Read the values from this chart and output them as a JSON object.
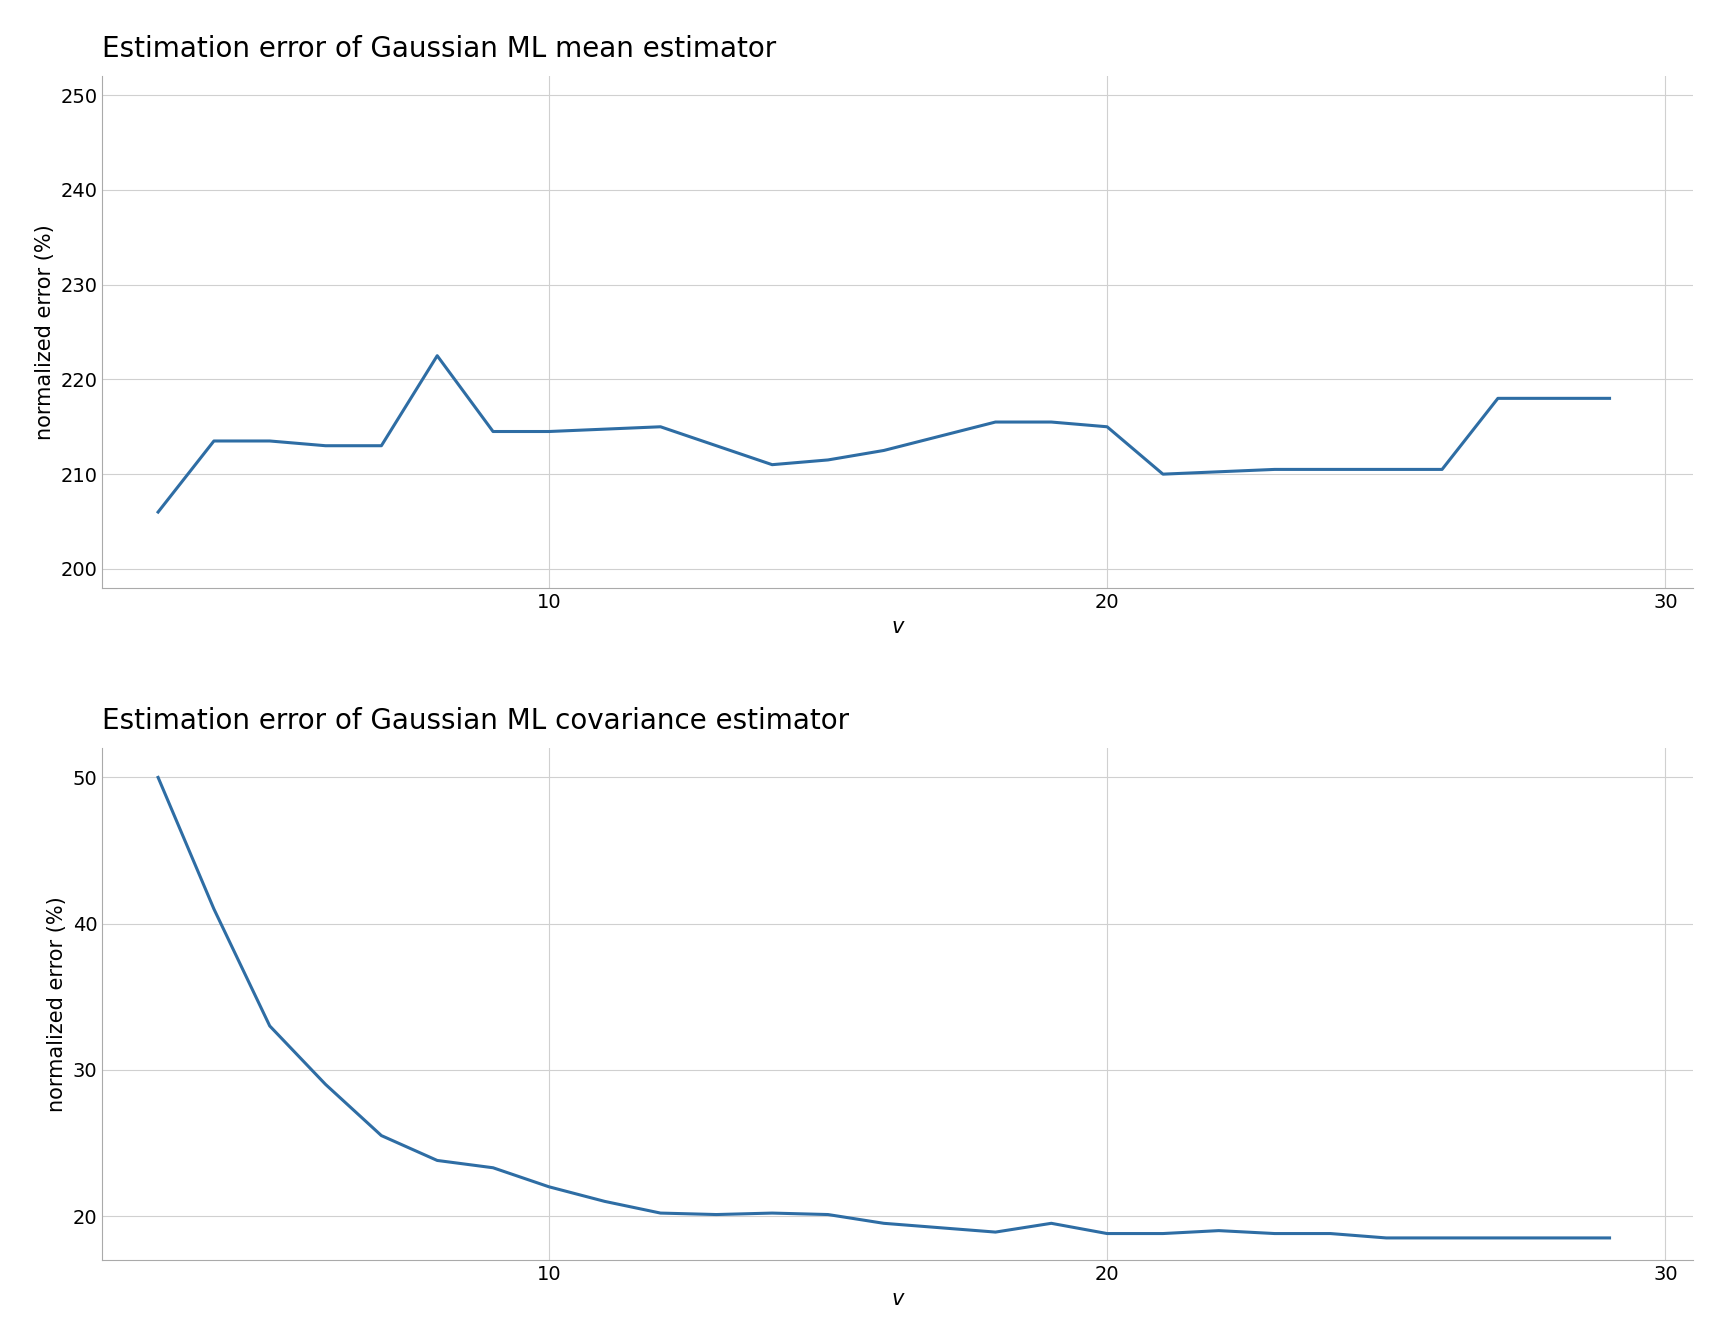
{
  "mean_x": [
    3,
    4,
    5,
    6,
    7,
    8,
    9,
    10,
    12,
    14,
    15,
    16,
    18,
    19,
    20,
    21,
    23,
    25,
    26,
    27,
    29
  ],
  "mean_y": [
    206.0,
    213.5,
    213.5,
    213.0,
    213.0,
    222.5,
    214.5,
    214.5,
    215.0,
    211.0,
    211.5,
    212.5,
    215.5,
    215.5,
    215.0,
    210.0,
    210.5,
    210.5,
    210.5,
    218.0,
    218.0
  ],
  "cov_x": [
    3,
    4,
    5,
    6,
    7,
    8,
    9,
    10,
    11,
    12,
    13,
    14,
    15,
    16,
    17,
    18,
    19,
    20,
    21,
    22,
    23,
    24,
    25,
    26,
    27,
    28,
    29
  ],
  "cov_y": [
    50.0,
    41.0,
    33.0,
    29.0,
    25.5,
    23.8,
    23.3,
    22.0,
    21.0,
    20.2,
    20.1,
    20.2,
    20.1,
    19.5,
    19.2,
    18.9,
    19.5,
    18.8,
    18.8,
    19.0,
    18.8,
    18.8,
    18.5,
    18.5,
    18.5,
    18.5,
    18.5
  ],
  "title_mean": "Estimation error of Gaussian ML mean estimator",
  "title_cov": "Estimation error of Gaussian ML covariance estimator",
  "xlabel": "v",
  "ylabel": "normalized error (%)",
  "line_color": "#2e6da4",
  "line_width": 2.2,
  "mean_ylim": [
    198,
    252
  ],
  "mean_yticks": [
    200,
    210,
    220,
    230,
    240,
    250
  ],
  "cov_ylim": [
    17,
    52
  ],
  "cov_yticks": [
    20,
    30,
    40,
    50
  ],
  "xlim": [
    2,
    30.5
  ],
  "xticks": [
    10,
    20,
    30
  ],
  "plot_bg_color": "#ffffff",
  "fig_bg_color": "#ffffff",
  "grid_color": "#d0d0d0",
  "title_fontsize": 20,
  "label_fontsize": 15,
  "tick_fontsize": 14
}
